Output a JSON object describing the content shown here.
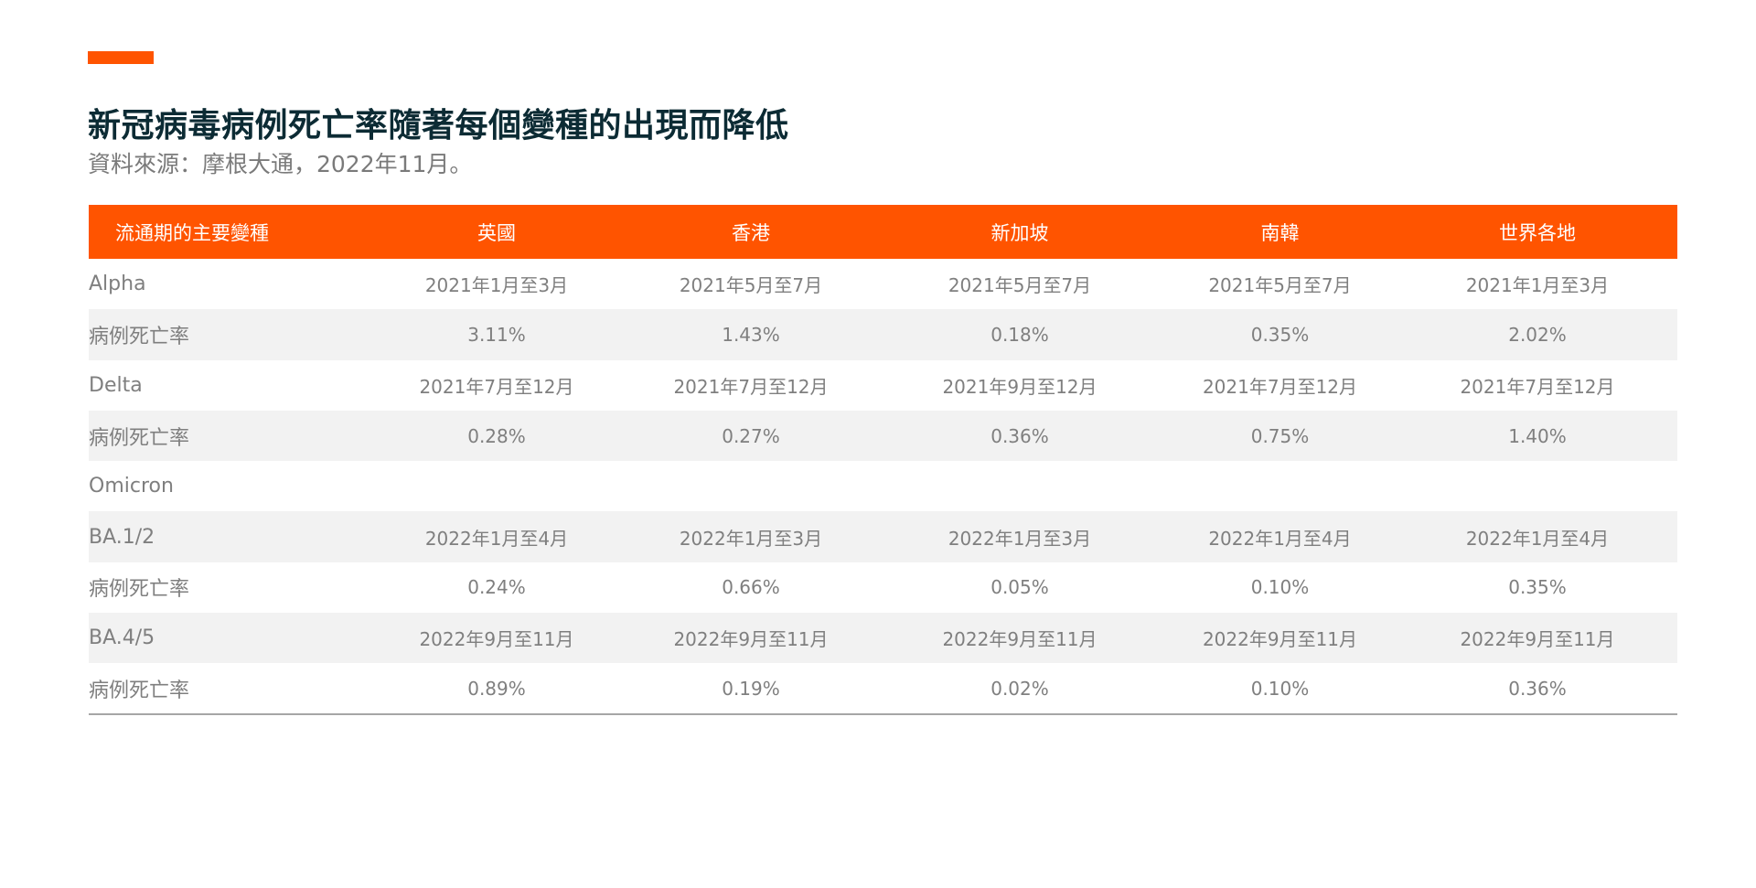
{
  "header": {
    "title": "新冠病毒病例死亡率隨著每個變種的出現而降低",
    "subtitle": "資料來源：摩根大通，2022年11月。",
    "accent_color": "#ff5400"
  },
  "chart_data": {
    "type": "table",
    "columns": [
      "流通期的主要變種",
      "英國",
      "香港",
      "新加坡",
      "南韓",
      "世界各地"
    ],
    "rows": [
      {
        "label": "Alpha",
        "indent": 0,
        "values": [
          "2021年1月至3月",
          "2021年5月至7月",
          "2021年5月至7月",
          "2021年5月至7月",
          "2021年1月至3月"
        ]
      },
      {
        "label": "病例死亡率",
        "indent": 2,
        "values": [
          "3.11%",
          "1.43%",
          "0.18%",
          "0.35%",
          "2.02%"
        ]
      },
      {
        "label": "Delta",
        "indent": 0,
        "values": [
          "2021年7月至12月",
          "2021年7月至12月",
          "2021年9月至12月",
          "2021年7月至12月",
          "2021年7月至12月"
        ]
      },
      {
        "label": "病例死亡率",
        "indent": 2,
        "values": [
          "0.28%",
          "0.27%",
          "0.36%",
          "0.75%",
          "1.40%"
        ]
      },
      {
        "label": "Omicron",
        "indent": 0,
        "values": [
          "",
          "",
          "",
          "",
          ""
        ]
      },
      {
        "label": "BA.1/2",
        "indent": 1,
        "values": [
          "2022年1月至4月",
          "2022年1月至3月",
          "2022年1月至3月",
          "2022年1月至4月",
          "2022年1月至4月"
        ]
      },
      {
        "label": "病例死亡率",
        "indent": 2,
        "values": [
          "0.24%",
          "0.66%",
          "0.05%",
          "0.10%",
          "0.35%"
        ]
      },
      {
        "label": "BA.4/5",
        "indent": 1,
        "values": [
          "2022年9月至11月",
          "2022年9月至11月",
          "2022年9月至11月",
          "2022年9月至11月",
          "2022年9月至11月"
        ]
      },
      {
        "label": "病例死亡率",
        "indent": 2,
        "values": [
          "0.89%",
          "0.19%",
          "0.02%",
          "0.10%",
          "0.36%"
        ]
      }
    ]
  }
}
